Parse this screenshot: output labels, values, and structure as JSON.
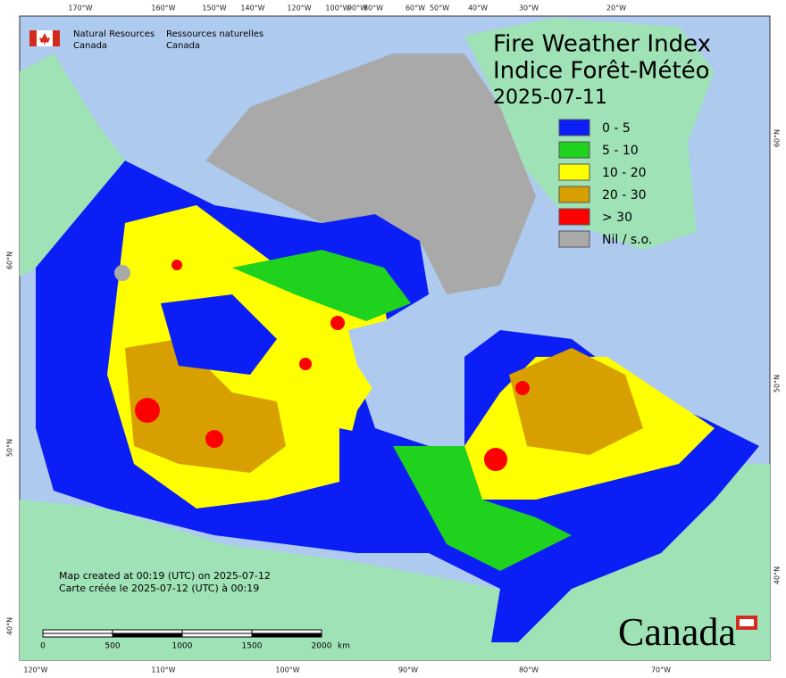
{
  "agency": {
    "en_name": "Natural Resources",
    "en_country": "Canada",
    "fr_name": "Ressources naturelles",
    "fr_country": "Canada"
  },
  "title": {
    "line1": "Fire Weather Index",
    "line2": "Indice Forêt-Météo",
    "date": "2025-07-11"
  },
  "legend": [
    {
      "label": "0 - 5",
      "color": "#0a1ef5"
    },
    {
      "label": "5 - 10",
      "color": "#1ed21e"
    },
    {
      "label": "10 - 20",
      "color": "#ffff00"
    },
    {
      "label": "20 - 30",
      "color": "#d7a000"
    },
    {
      "label": "> 30",
      "color": "#ff0000"
    },
    {
      "label": "Nil / s.o.",
      "color": "#a9a9a9"
    }
  ],
  "notes": {
    "en": "Map created at 00:19 (UTC) on 2025-07-12",
    "fr": "Carte créée le 2025-07-12 (UTC) à 00:19"
  },
  "scale": {
    "labels": [
      "0",
      "500",
      "1000",
      "1500",
      "2000"
    ],
    "unit": "km"
  },
  "wordmark": "Canada",
  "graticule": {
    "top": [
      "170°W",
      "160°W",
      "150°W",
      "140°W",
      "120°W",
      "100°W",
      "90°W",
      "80°W",
      "60°W",
      "50°W",
      "40°W",
      "30°W",
      "20°W"
    ],
    "bottom": [
      "120°W",
      "110°W",
      "100°W",
      "90°W",
      "80°W",
      "70°W"
    ],
    "left": [
      "60°N",
      "50°N",
      "40°N"
    ],
    "right": [
      "60°N",
      "50°N",
      "40°N"
    ]
  }
}
